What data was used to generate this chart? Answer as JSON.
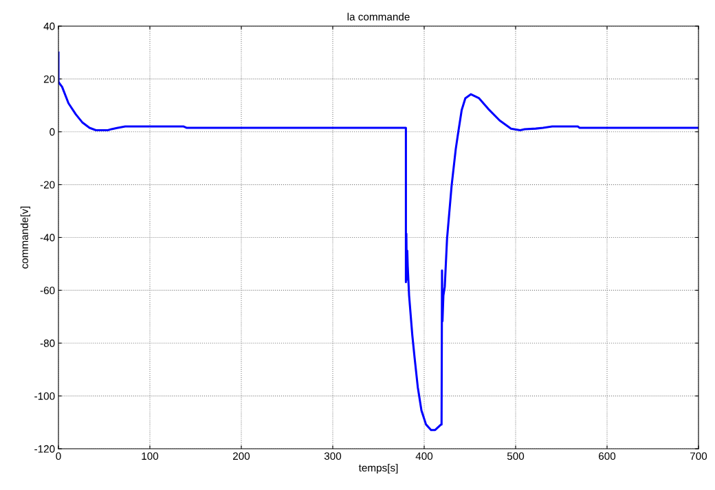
{
  "chart_data": {
    "type": "line",
    "title": "la commande",
    "xlabel": "temps[s]",
    "ylabel": "commande[v]",
    "series": [
      {
        "color": "#0000ff",
        "x": [
          0,
          0,
          0.5,
          4,
          11,
          19,
          26,
          34,
          41,
          54,
          58,
          64,
          73,
          137,
          140,
          380,
          380,
          380.5,
          381,
          381.5,
          382,
          383.5,
          387,
          389.5,
          393,
          397,
          402,
          407.5,
          412,
          418.5,
          419,
          419.5,
          420,
          421,
          422.5,
          425,
          430,
          434.5,
          437.5,
          441,
          445,
          451,
          460,
          470,
          482.5,
          495,
          505,
          510,
          522,
          530,
          540,
          568,
          570,
          700
        ],
        "values": [
          30,
          19,
          18.6,
          17,
          10.8,
          6.6,
          3.6,
          1.5,
          0.6,
          0.6,
          1,
          1.4,
          2,
          2,
          1.5,
          1.5,
          -56.9,
          -38.6,
          -56,
          -45,
          -50.9,
          -62,
          -77,
          -85.5,
          -96.7,
          -105.5,
          -110.8,
          -112.9,
          -112.9,
          -110.8,
          -110.8,
          -52.5,
          -71.7,
          -62,
          -58.7,
          -40.5,
          -20.4,
          -6.6,
          0.4,
          8.2,
          12.7,
          14.2,
          12.7,
          8.7,
          4.3,
          1.2,
          0.6,
          1,
          1.2,
          1.5,
          2,
          2,
          1.5,
          1.5
        ]
      }
    ],
    "xlim": [
      0,
      700
    ],
    "xticks": [
      0,
      100,
      200,
      300,
      400,
      500,
      600,
      700
    ],
    "ylim": [
      -120,
      40
    ],
    "yticks": [
      -120,
      -100,
      -80,
      -60,
      -40,
      -20,
      0,
      20,
      40
    ],
    "grid": true,
    "line_style": "solid",
    "marker": "none"
  }
}
